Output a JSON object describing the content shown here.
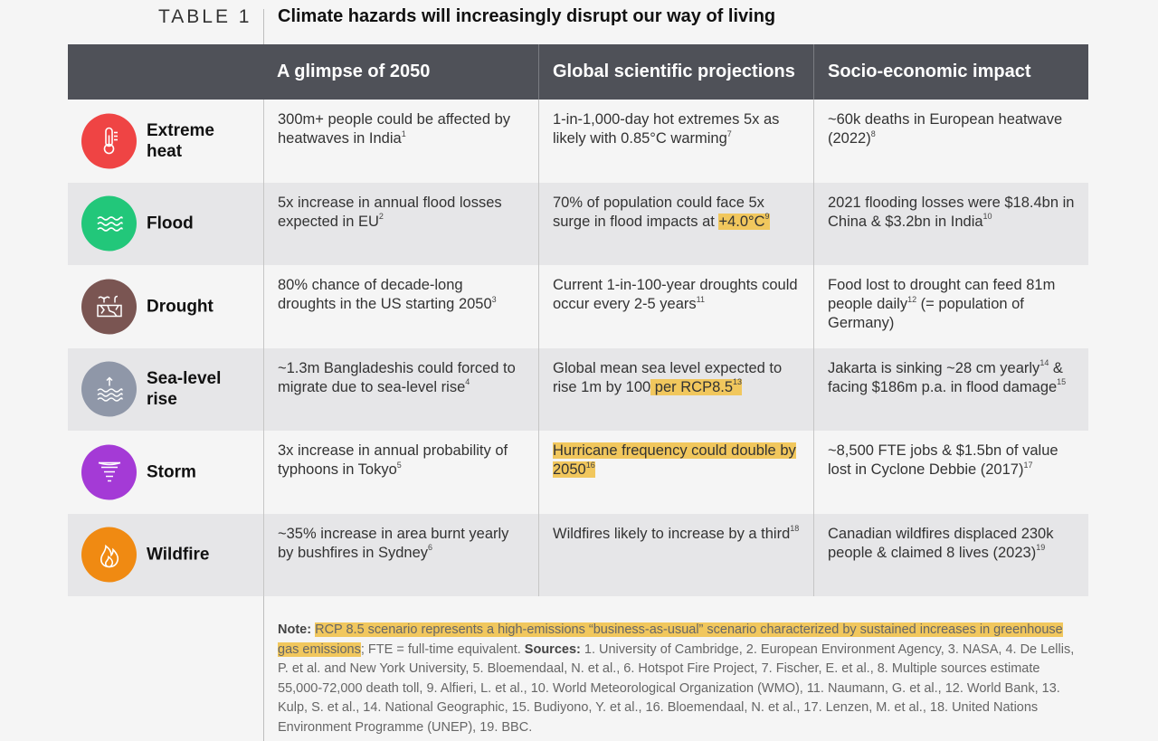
{
  "heading": {
    "label": "TABLE 1",
    "title": "Climate hazards will increasingly disrupt our way of living"
  },
  "columns": [
    "A glimpse of 2050",
    "Global scientific projections",
    "Socio-economic impact"
  ],
  "rows": [
    {
      "hazard": "Extreme heat",
      "icon": "thermometer-icon",
      "color": "#ef4444",
      "glimpse": "300m+ people could be affected by heatwaves in India",
      "glimpse_ref": "1",
      "projection": "1-in-1,000-day hot extremes 5x as likely with 0.85°C warming",
      "projection_ref": "7",
      "impact": "~60k deaths in European heatwave (2022)",
      "impact_ref": "8"
    },
    {
      "hazard": "Flood",
      "icon": "waves-icon",
      "color": "#22c77a",
      "glimpse": "5x increase in annual flood losses expected in EU",
      "glimpse_ref": "2",
      "projection_pre": "70% of population could face 5x surge in flood impacts at ",
      "projection_hl": "+4.0°C",
      "projection_ref": "9",
      "impact": "2021 flooding losses were $18.4bn in China & $3.2bn in India",
      "impact_ref": "10"
    },
    {
      "hazard": "Drought",
      "icon": "cracked-earth-icon",
      "color": "#7a5552",
      "glimpse": "80% chance of decade-long droughts in the US starting 2050",
      "glimpse_ref": "3",
      "projection": "Current 1-in-100-year droughts could occur every 2-5 years",
      "projection_ref": "11",
      "impact_pre": "Food lost to drought can feed 81m people daily",
      "impact_ref": "12",
      "impact_post": " (= population of Germany)"
    },
    {
      "hazard": "Sea-level rise",
      "icon": "sea-level-icon",
      "color": "#8f97a8",
      "glimpse": "~1.3m Bangladeshis could forced to migrate due to sea-level rise",
      "glimpse_ref": "4",
      "projection_pre": "Global mean sea level expected to rise 1m by 100",
      "projection_hl": " per RCP8.5",
      "projection_ref": "13",
      "impact_pre": "Jakarta is sinking ~28 cm yearly",
      "impact_ref": "14",
      "impact_post": " & facing $186m p.a. in flood damage",
      "impact_ref2": "15"
    },
    {
      "hazard": "Storm",
      "icon": "tornado-icon",
      "color": "#a43ad6",
      "glimpse": "3x increase in annual probability of typhoons in Tokyo",
      "glimpse_ref": "5",
      "projection_hl": "Hurricane frequency could double by 2050",
      "projection_ref": "16",
      "impact": "~8,500 FTE jobs & $1.5bn of value lost in Cyclone Debbie (2017)",
      "impact_ref": "17"
    },
    {
      "hazard": "Wildfire",
      "icon": "flame-icon",
      "color": "#f08a12",
      "glimpse": "~35% increase in area burnt yearly by bushfires in Sydney",
      "glimpse_ref": "6",
      "projection": "Wildfires likely to increase by a third",
      "projection_ref": "18",
      "impact": "Canadian wildfires displaced 230k people & claimed 8 lives (2023)",
      "impact_ref": "19"
    }
  ],
  "note": {
    "label": "Note:",
    "highlight": "RCP 8.5 scenario represents a high-emissions “business-as-usual” scenario characterized by sustained increases in greenhouse gas emissions",
    "text": "; FTE = full-time equivalent. ",
    "sources_label": "Sources:",
    "sources": " 1. University of Cambridge, 2. European Environment Agency, 3. NASA, 4. De Lellis, P. et al. and New York University, 5. Bloemendaal, N. et al., 6. Hotspot Fire Project, 7. Fischer, E. et al., 8. Multiple sources estimate 55,000-72,000 death toll, 9. Alfieri, L. et al., 10. World Meteorological Organization (WMO), 11. Naumann, G. et al., 12. World Bank, 13. Kulp, S. et al., 14. National Geographic, 15. Budiyono, Y. et al., 16. Bloemendaal, N. et al., 17. Lenzen, M. et al., 18. United Nations Environment Programme (UNEP), 19. BBC."
  }
}
